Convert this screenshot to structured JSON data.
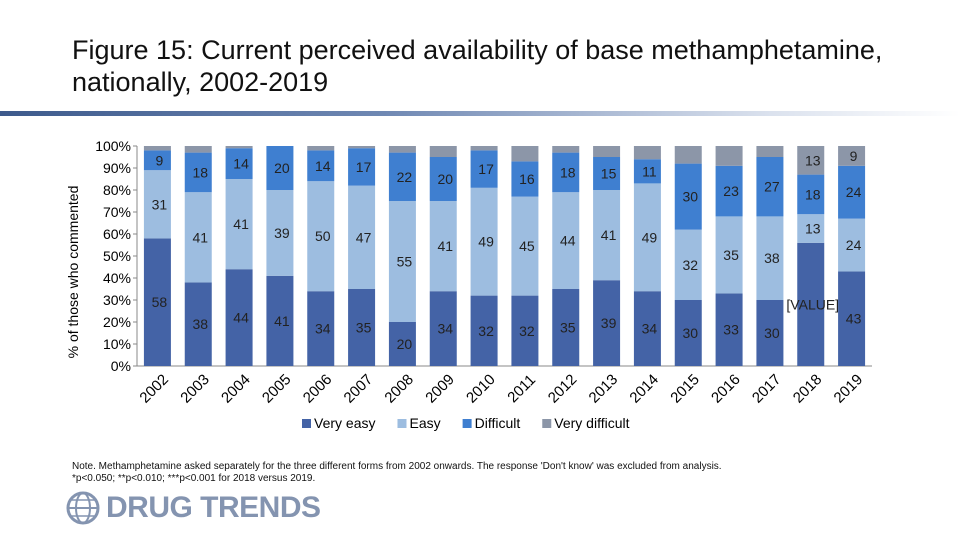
{
  "title": "Figure 15: Current perceived availability of base methamphetamine, nationally, 2002-2019",
  "note_prefix": "Note. Methamphetamine asked separately for the three different forms from 2002 onwards. The response 'Don't know' was excluded from analysis. ",
  "note_sig": "*p<0.050; **p<0.010; ***p<0.001 for 2018 versus 2019.",
  "logo_text": "DRUG TRENDS",
  "colors": {
    "very_easy": "#4463a6",
    "easy": "#9dbde0",
    "difficult": "#3f7fd0",
    "very_difficult": "#8c96a8"
  },
  "chart_data": {
    "type": "bar",
    "stacked": true,
    "categories": [
      "2002",
      "2003",
      "2004",
      "2005",
      "2006",
      "2007",
      "2008",
      "2009",
      "2010",
      "2011",
      "2012",
      "2013",
      "2014",
      "2015",
      "2016",
      "2017",
      "2018",
      "2019"
    ],
    "ylabel": "% of those who commented",
    "ylim": [
      0,
      100
    ],
    "yticks": [
      "0%",
      "10%",
      "20%",
      "30%",
      "40%",
      "50%",
      "60%",
      "70%",
      "80%",
      "90%",
      "100%"
    ],
    "legend_position": "bottom",
    "series": [
      {
        "name": "Very easy",
        "values": [
          58,
          38,
          44,
          41,
          34,
          35,
          20,
          34,
          32,
          32,
          35,
          39,
          34,
          30,
          33,
          30,
          56,
          43
        ],
        "labels": [
          "58",
          "38",
          "44",
          "41",
          "34",
          "35",
          "20",
          "34",
          "32",
          "32",
          "35",
          "39",
          "34",
          "30",
          "33",
          "30",
          "[VALUE]",
          "43"
        ]
      },
      {
        "name": "Easy",
        "values": [
          31,
          41,
          41,
          39,
          50,
          47,
          55,
          41,
          49,
          45,
          44,
          41,
          49,
          32,
          35,
          38,
          13,
          24
        ],
        "labels": [
          "31",
          "41",
          "41",
          "39",
          "50",
          "47",
          "55",
          "41",
          "49",
          "45",
          "44",
          "41",
          "49",
          "32",
          "35",
          "38",
          "13",
          "24"
        ]
      },
      {
        "name": "Difficult",
        "values": [
          9,
          18,
          14,
          20,
          14,
          17,
          22,
          20,
          17,
          16,
          18,
          15,
          11,
          30,
          23,
          27,
          18,
          24
        ],
        "labels": [
          "9",
          "18",
          "14",
          "20",
          "14",
          "17",
          "22",
          "20",
          "17",
          "16",
          "18",
          "15",
          "11",
          "30",
          "23",
          "27",
          "18",
          "24"
        ]
      },
      {
        "name": "Very difficult",
        "values": [
          2,
          3,
          1,
          0,
          2,
          1,
          3,
          5,
          2,
          7,
          3,
          5,
          6,
          8,
          9,
          5,
          13,
          9
        ],
        "labels": [
          "",
          "",
          "",
          "",
          "",
          "",
          "",
          "",
          "",
          "",
          "",
          "",
          "",
          "",
          "",
          "",
          "13",
          "9"
        ]
      }
    ]
  }
}
